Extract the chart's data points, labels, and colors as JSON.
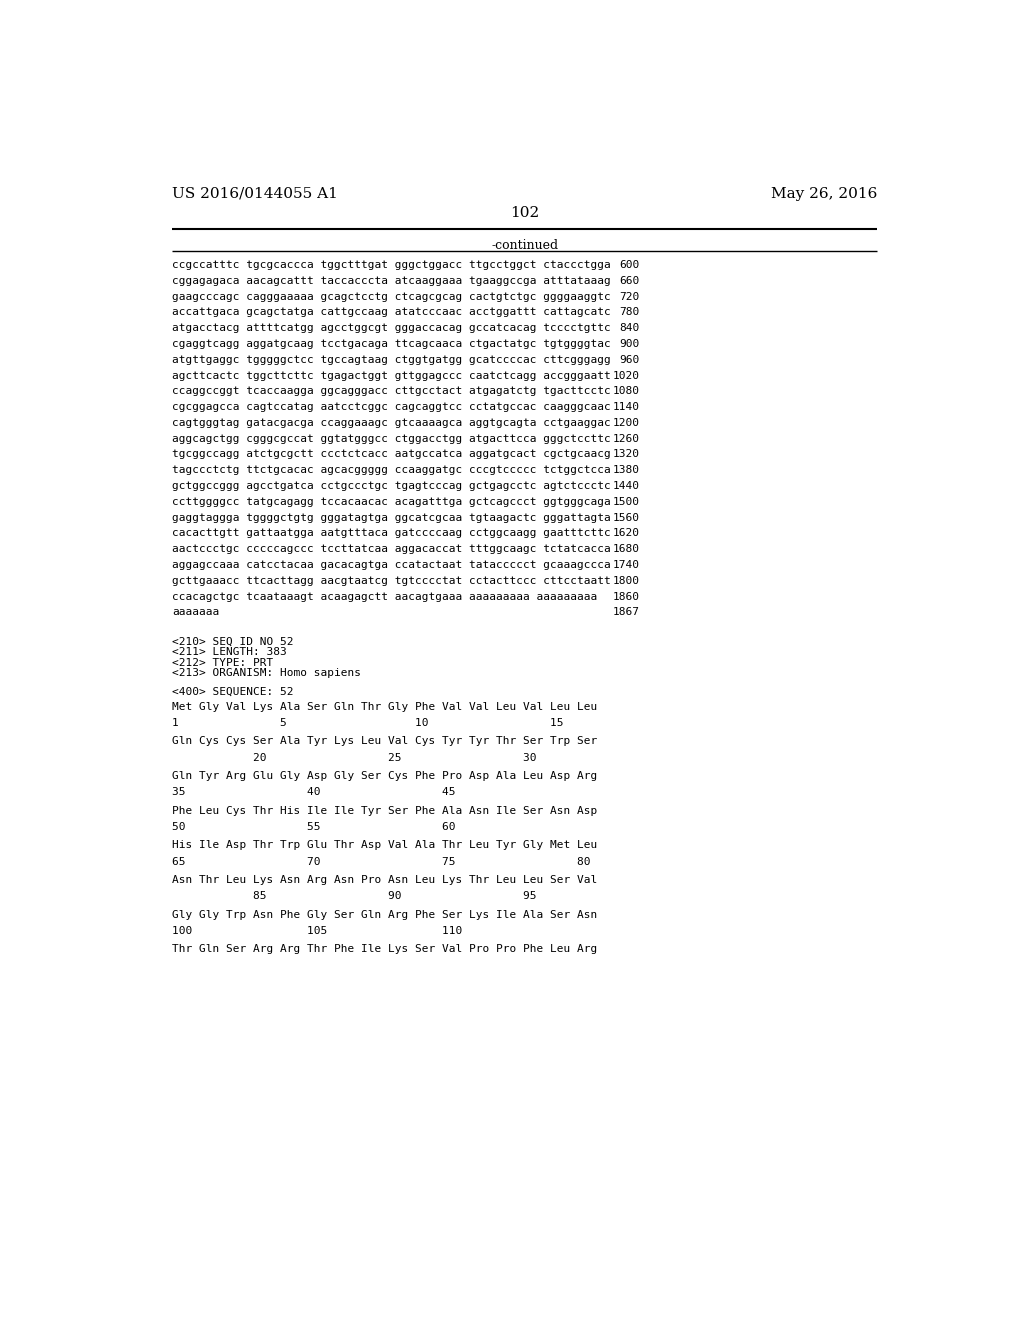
{
  "header_left": "US 2016/0144055 A1",
  "header_right": "May 26, 2016",
  "page_number": "102",
  "continued_label": "-continued",
  "background_color": "#ffffff",
  "text_color": "#000000",
  "font_size_header": 11,
  "font_size_body": 9,
  "mono_size": 8.0,
  "sequence_lines": [
    [
      "ccgccatttc tgcgcaccca tggctttgat gggctggacc ttgcctggct ctaccctgga",
      "600"
    ],
    [
      "cggagagaca aacagcattt taccacccta atcaaggaaa tgaaggccga atttataaag",
      "660"
    ],
    [
      "gaagcccagc cagggaaaaa gcagctcctg ctcagcgcag cactgtctgc ggggaaggtc",
      "720"
    ],
    [
      "accattgaca gcagctatga cattgccaag atatcccaac acctggattt cattagcatc",
      "780"
    ],
    [
      "atgacctacg attttcatgg agcctggcgt gggaccacag gccatcacag tcccctgttc",
      "840"
    ],
    [
      "cgaggtcagg aggatgcaag tcctgacaga ttcagcaaca ctgactatgc tgtggggtac",
      "900"
    ],
    [
      "atgttgaggc tgggggctcc tgccagtaag ctggtgatgg gcatccccac cttcgggagg",
      "960"
    ],
    [
      "agcttcactc tggcttcttc tgagactggt gttggagccc caatctcagg accgggaatt",
      "1020"
    ],
    [
      "ccaggccggt tcaccaagga ggcagggacc cttgcctact atgagatctg tgacttcctc",
      "1080"
    ],
    [
      "cgcggagcca cagtccatag aatcctcggc cagcaggtcc cctatgccac caagggcaac",
      "1140"
    ],
    [
      "cagtgggtag gatacgacga ccaggaaagc gtcaaaagca aggtgcagta cctgaaggac",
      "1200"
    ],
    [
      "aggcagctgg cgggcgccat ggtatgggcc ctggacctgg atgacttcca gggctccttc",
      "1260"
    ],
    [
      "tgcggccagg atctgcgctt ccctctcacc aatgccatca aggatgcact cgctgcaacg",
      "1320"
    ],
    [
      "tagccctctg ttctgcacac agcacggggg ccaaggatgc cccgtccccc tctggctcca",
      "1380"
    ],
    [
      "gctggccggg agcctgatca cctgccctgc tgagtcccag gctgagcctc agtctccctc",
      "1440"
    ],
    [
      "ccttggggcc tatgcagagg tccacaacac acagatttga gctcagccct ggtgggcaga",
      "1500"
    ],
    [
      "gaggtaggga tggggctgtg gggatagtga ggcatcgcaa tgtaagactc gggattagta",
      "1560"
    ],
    [
      "cacacttgtt gattaatgga aatgtttaca gatccccaag cctggcaagg gaatttcttc",
      "1620"
    ],
    [
      "aactccctgc cccccagccc tccttatcaa aggacaccat tttggcaagc tctatcacca",
      "1680"
    ],
    [
      "aggagccaaa catcctacaa gacacagtga ccatactaat tataccccct gcaaagccca",
      "1740"
    ],
    [
      "gcttgaaacc ttcacttagg aacgtaatcg tgtcccctat cctacttccc cttcctaatt",
      "1800"
    ],
    [
      "ccacagctgc tcaataaagt acaagagctt aacagtgaaa aaaaaaaaa aaaaaaaaa",
      "1860"
    ],
    [
      "aaaaaaa",
      "1867"
    ]
  ],
  "metadata_lines": [
    "<210> SEQ ID NO 52",
    "<211> LENGTH: 383",
    "<212> TYPE: PRT",
    "<213> ORGANISM: Homo sapiens"
  ],
  "sequence_label": "<400> SEQUENCE: 52",
  "protein_blocks": [
    {
      "seq": "Met Gly Val Lys Ala Ser Gln Thr Gly Phe Val Val Leu Val Leu Leu",
      "num": "1               5                   10                  15"
    },
    {
      "seq": "Gln Cys Cys Ser Ala Tyr Lys Leu Val Cys Tyr Tyr Thr Ser Trp Ser",
      "num": "            20                  25                  30"
    },
    {
      "seq": "Gln Tyr Arg Glu Gly Asp Gly Ser Cys Phe Pro Asp Ala Leu Asp Arg",
      "num": "35                  40                  45"
    },
    {
      "seq": "Phe Leu Cys Thr His Ile Ile Tyr Ser Phe Ala Asn Ile Ser Asn Asp",
      "num": "50                  55                  60"
    },
    {
      "seq": "His Ile Asp Thr Trp Glu Thr Asp Val Ala Thr Leu Tyr Gly Met Leu",
      "num": "65                  70                  75                  80"
    },
    {
      "seq": "Asn Thr Leu Lys Asn Arg Asn Pro Asn Leu Lys Thr Leu Leu Ser Val",
      "num": "            85                  90                  95"
    },
    {
      "seq": "Gly Gly Trp Asn Phe Gly Ser Gln Arg Phe Ser Lys Ile Ala Ser Asn",
      "num": "100                 105                 110"
    },
    {
      "seq": "Thr Gln Ser Arg Arg Thr Phe Ile Lys Ser Val Pro Pro Phe Leu Arg",
      "num": ""
    }
  ]
}
